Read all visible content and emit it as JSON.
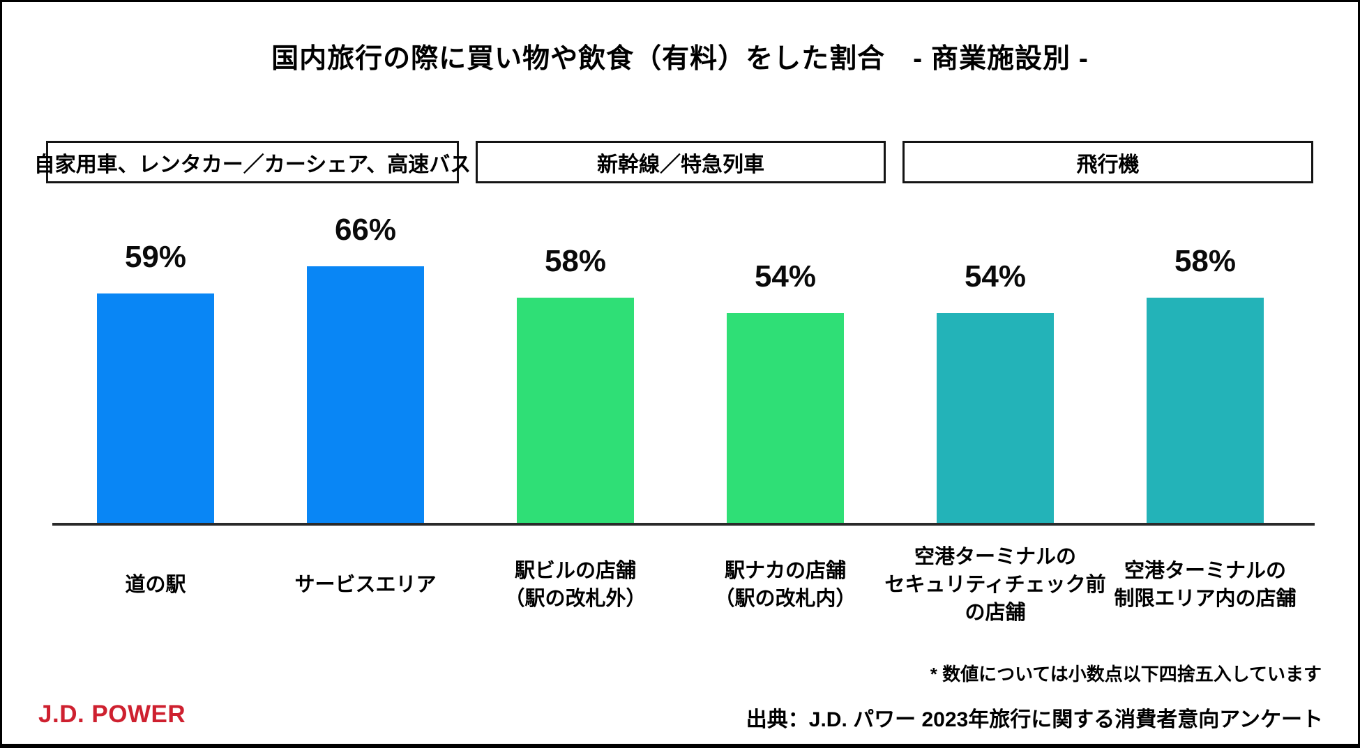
{
  "page": {
    "title": "国内旅行の際に買い物や飲食（有料）をした割合　- 商業施設別 -"
  },
  "branding": {
    "logo_text": "J.D. POWER",
    "logo_color": "#CE202F"
  },
  "notes": {
    "footnote": "* 数値については小数点以下四捨五入しています",
    "source": "出典：J.D. パワー 2023年旅行に関する消費者意向アンケート"
  },
  "chart_data": {
    "type": "bar",
    "title": "国内旅行の際に買い物や飲食（有料）をした割合 - 商業施設別 -",
    "unit": "%",
    "ylim": [
      0,
      70
    ],
    "grid": false,
    "legend": "none",
    "axis_color": "#2a2a2a",
    "groups": [
      {
        "label": "自家用車、レンタカー／カーシェア、高速バス",
        "color": "#0986F5",
        "bars": [
          {
            "category_lines": [
              "道の駅"
            ],
            "value": 59
          },
          {
            "category_lines": [
              "サービスエリア"
            ],
            "value": 66
          }
        ]
      },
      {
        "label": "新幹線／特急列車",
        "color": "#2FDF76",
        "bars": [
          {
            "category_lines": [
              "駅ビルの店舗",
              "（駅の改札外）"
            ],
            "value": 58
          },
          {
            "category_lines": [
              "駅ナカの店舗",
              "（駅の改札内）"
            ],
            "value": 54
          }
        ]
      },
      {
        "label": "飛行機",
        "color": "#23B3B8",
        "bars": [
          {
            "category_lines": [
              "空港ターミナルの",
              "セキュリティチェック前",
              "の店舗"
            ],
            "value": 54
          },
          {
            "category_lines": [
              "空港ターミナルの",
              "制限エリア内の店舗"
            ],
            "value": 58
          }
        ]
      }
    ]
  }
}
